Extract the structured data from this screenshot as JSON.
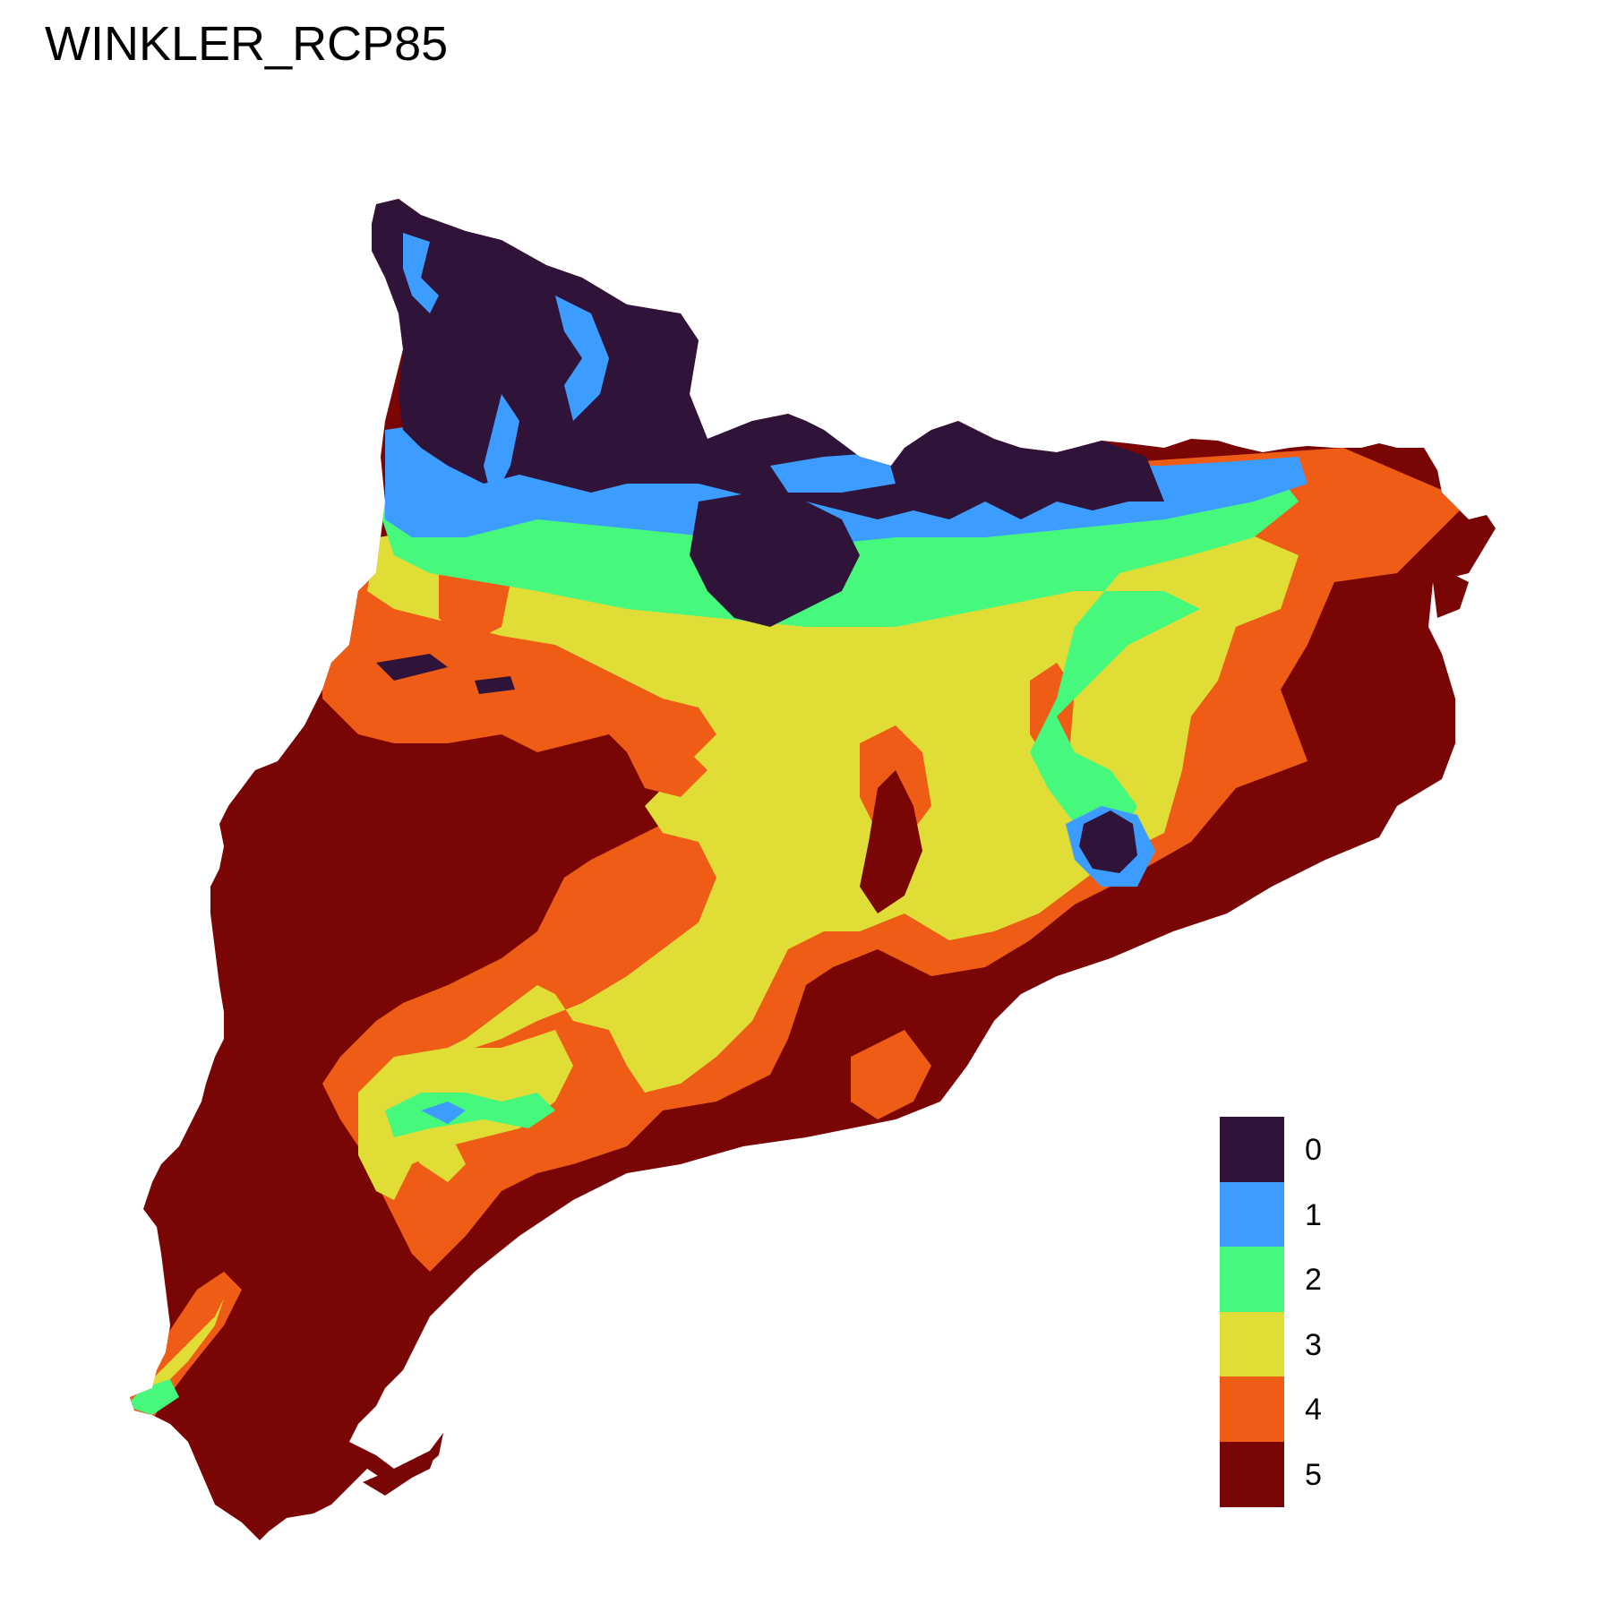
{
  "title": "WINKLER_RCP85",
  "legend": {
    "items": [
      {
        "label": "0",
        "color": "#2f1339"
      },
      {
        "label": "1",
        "color": "#3c9cff"
      },
      {
        "label": "2",
        "color": "#46f97c"
      },
      {
        "label": "3",
        "color": "#e0dd37"
      },
      {
        "label": "4",
        "color": "#ef5c15"
      },
      {
        "label": "5",
        "color": "#790504"
      }
    ]
  }
}
